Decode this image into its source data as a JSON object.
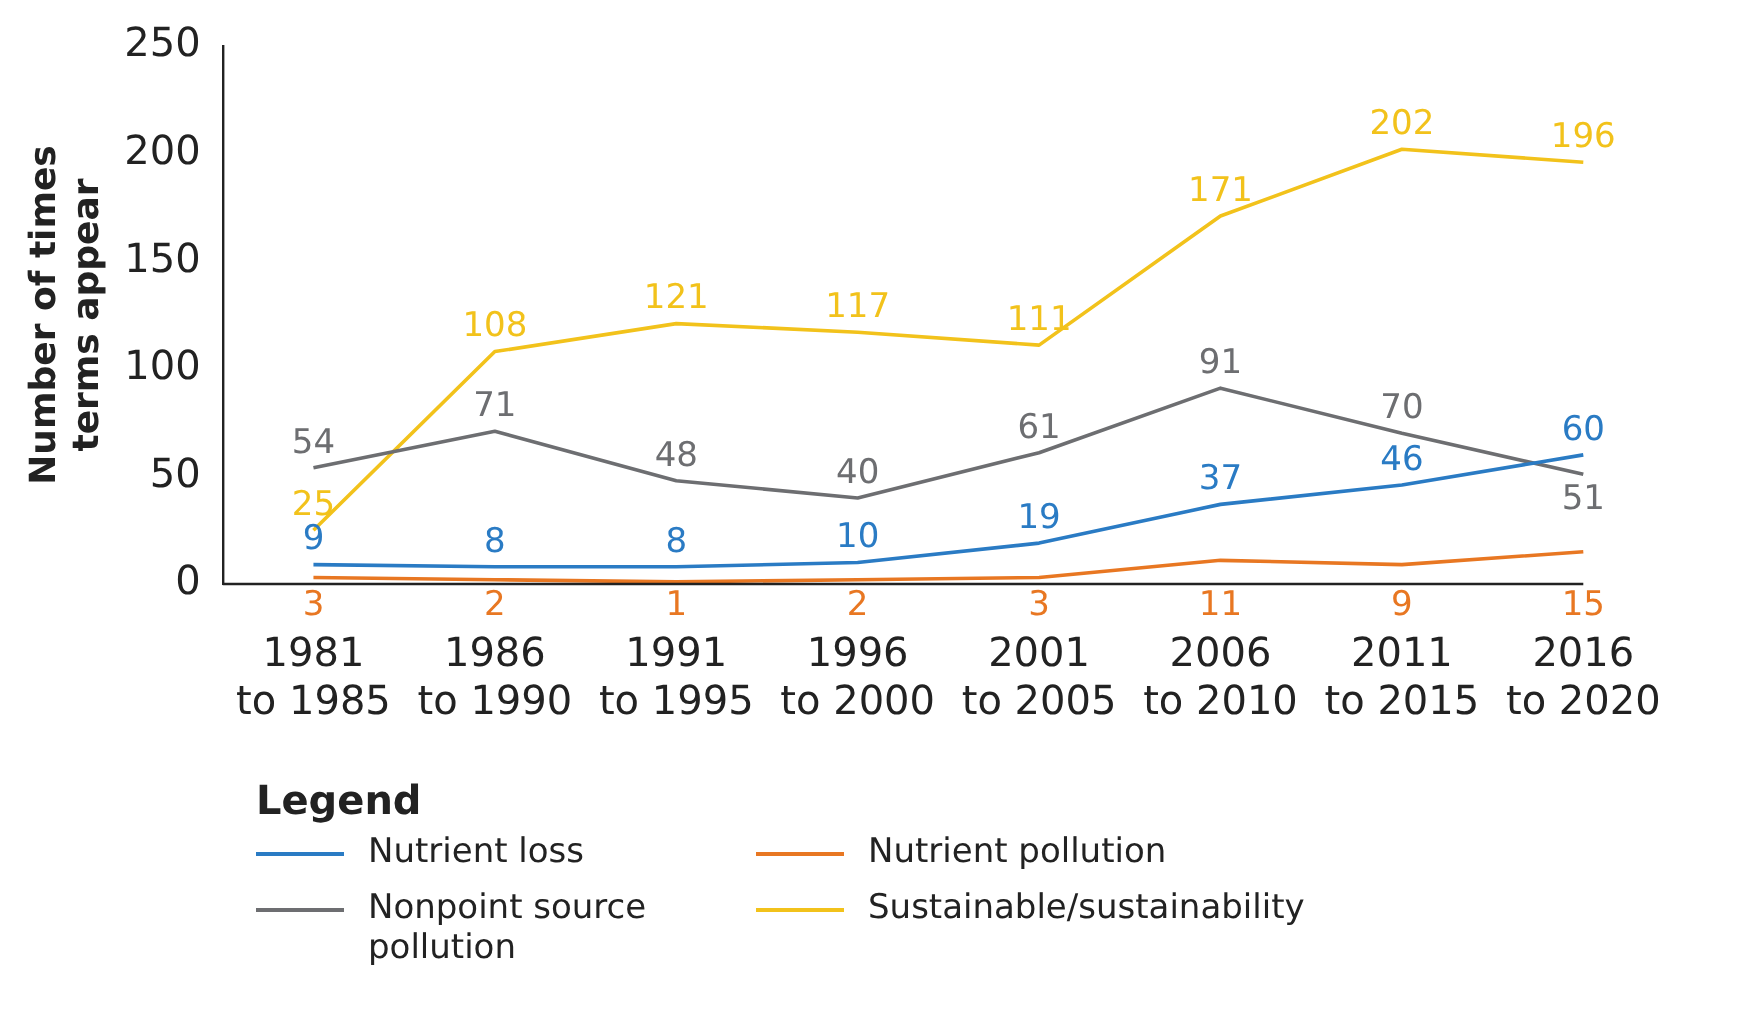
{
  "chart_data": {
    "type": "line",
    "categories": [
      "1981 to 1985",
      "1986 to 1990",
      "1991 to 1995",
      "1996 to 2000",
      "2001 to 2005",
      "2006 to 2010",
      "2011 to 2015",
      "2016 to 2020"
    ],
    "ylabel": "Number of times terms appear",
    "legend_title": "Legend",
    "series": [
      {
        "name": "Nutrient loss",
        "color": "#2a7bc4",
        "values": [
          9,
          8,
          8,
          10,
          19,
          37,
          46,
          60
        ]
      },
      {
        "name": "Nutrient pollution",
        "color": "#e87722",
        "values": [
          3,
          2,
          1,
          2,
          3,
          11,
          9,
          15
        ]
      },
      {
        "name": "Nonpoint source pollution",
        "color": "#6d6e71",
        "values": [
          54,
          71,
          48,
          40,
          61,
          91,
          70,
          51
        ]
      },
      {
        "name": "Sustainable/sustainability",
        "color": "#f2c21b",
        "values": [
          25,
          108,
          121,
          117,
          111,
          171,
          202,
          196
        ]
      }
    ],
    "ylim": [
      0,
      250
    ],
    "yticks": [
      0,
      50,
      100,
      150,
      200,
      250
    ],
    "grid": false,
    "legend": "bottom",
    "marker": "none",
    "line_style": "solid",
    "data_labels": true
  }
}
